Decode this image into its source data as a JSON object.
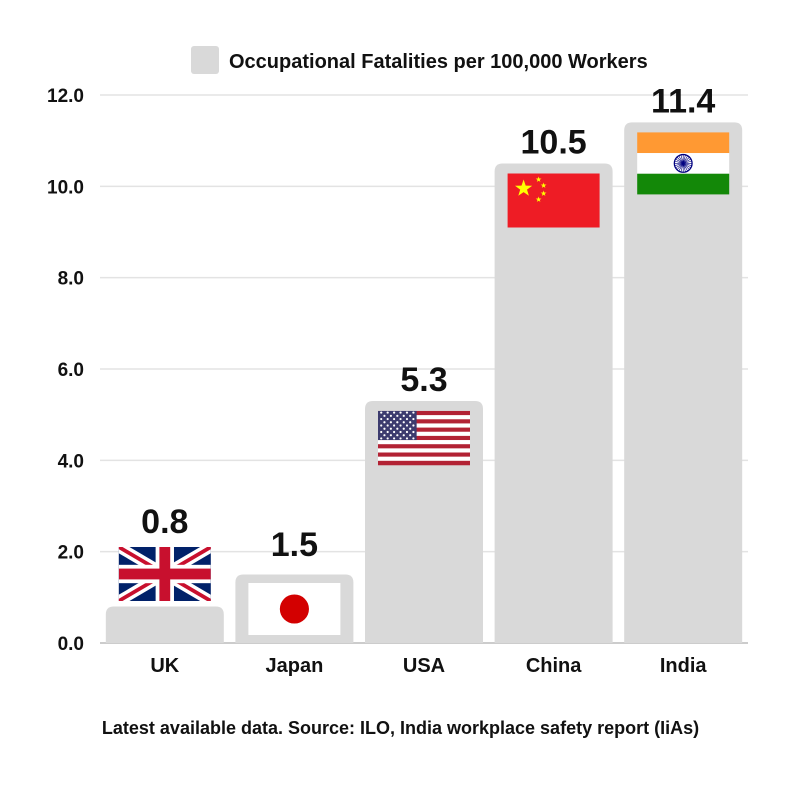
{
  "chart_data": {
    "type": "bar",
    "legend": "Occupational Fatalities per 100,000 Workers",
    "legend_position": "top-center",
    "categories": [
      "UK",
      "Japan",
      "USA",
      "China",
      "India"
    ],
    "series": [
      {
        "name": "Occupational Fatalities per 100,000 Workers",
        "values": [
          0.8,
          1.5,
          5.3,
          10.5,
          11.4
        ]
      }
    ],
    "value_labels": [
      "0.8",
      "1.5",
      "5.3",
      "10.5",
      "11.4"
    ],
    "flags": [
      "uk-flag-icon",
      "japan-flag-icon",
      "usa-flag-icon",
      "china-flag-icon",
      "india-flag-icon"
    ],
    "ylim": [
      0,
      12
    ],
    "yticks": [
      "0.0",
      "2.0",
      "4.0",
      "6.0",
      "8.0",
      "10.0",
      "12.0"
    ],
    "grid": true,
    "bar_color": "#d9d9d9"
  },
  "source": "Latest available data. Source: ILO, India workplace safety report (IiAs)"
}
